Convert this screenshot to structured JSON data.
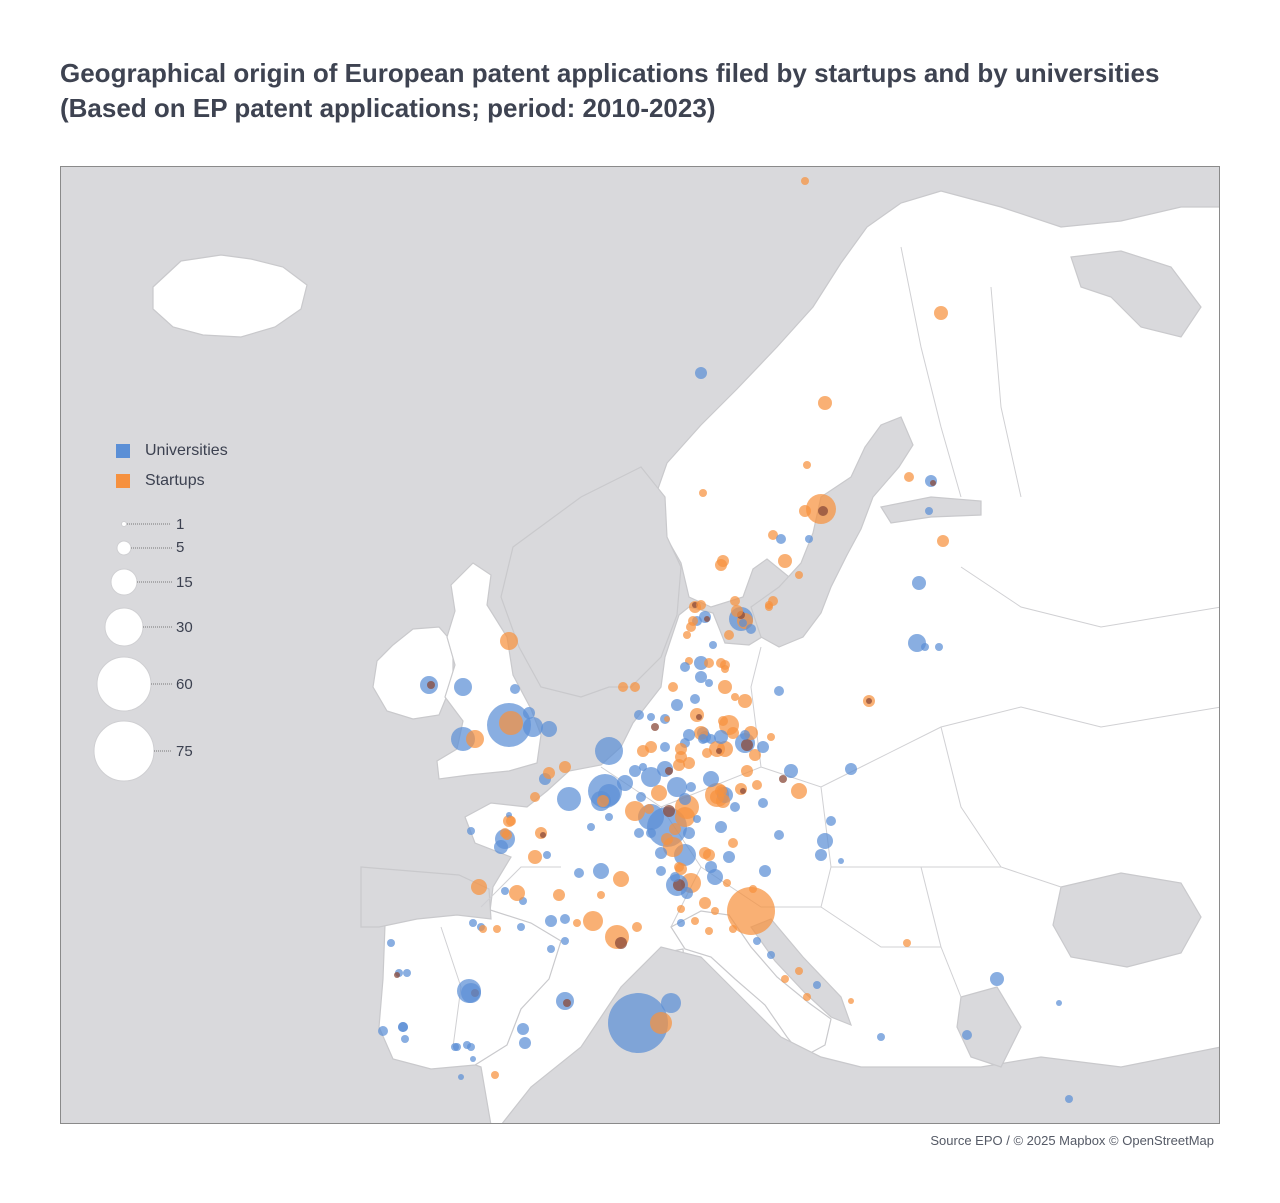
{
  "title": {
    "line1": "Geographical origin of European patent applications filed by startups and by universities",
    "line2": "(Based on EP patent applications; period: 2010-2023)"
  },
  "legend": {
    "categories": [
      {
        "label": "Universities",
        "color": "#5b8fd6"
      },
      {
        "label": "Startups",
        "color": "#f6913f"
      }
    ],
    "sizes": [
      "1",
      "5",
      "15",
      "30",
      "60",
      "75"
    ]
  },
  "source": "Source EPO / © 2025 Mapbox © OpenStreetMap",
  "colors": {
    "land": "#ffffff",
    "sea": "#d9d9dc",
    "border": "#c9c9cc",
    "universities": "#5b8fd6",
    "startups": "#f6913f",
    "overlap": "#8a4a3a"
  }
}
